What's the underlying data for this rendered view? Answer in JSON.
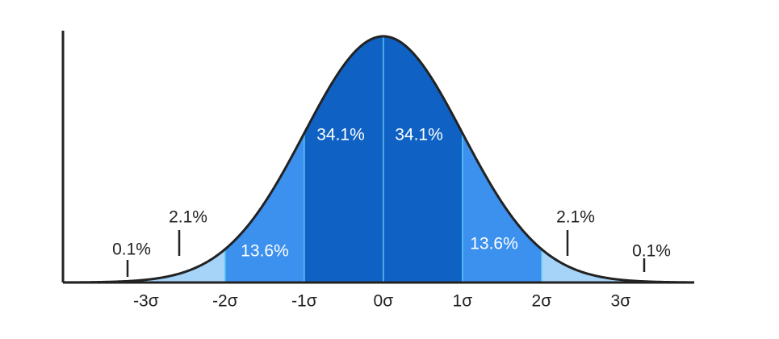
{
  "chart_data": {
    "type": "normal",
    "xlim": [
      -4.05,
      3.93
    ],
    "xticks": [
      {
        "value": -3,
        "label": "-3σ"
      },
      {
        "value": -2,
        "label": "-2σ"
      },
      {
        "value": -1,
        "label": "-1σ"
      },
      {
        "value": 0,
        "label": "0σ"
      },
      {
        "value": 1,
        "label": "1σ"
      },
      {
        "value": 2,
        "label": "2σ"
      },
      {
        "value": 3,
        "label": "3σ"
      }
    ],
    "values": [
      0.1,
      2.1,
      13.6,
      34.1,
      34.1,
      13.6,
      2.1,
      0.1
    ],
    "value_labels": [
      "0.1%",
      "2.1%",
      "13.6%",
      "34.1%",
      "34.1%",
      "13.6%",
      "2.1%",
      "0.1%"
    ],
    "colors": [
      "#eef7fe",
      "#a6d3f8",
      "#3c90ee",
      "#0f62c4",
      "#0f62c4",
      "#3c90ee",
      "#a6d3f8",
      "#eef7fe"
    ]
  }
}
